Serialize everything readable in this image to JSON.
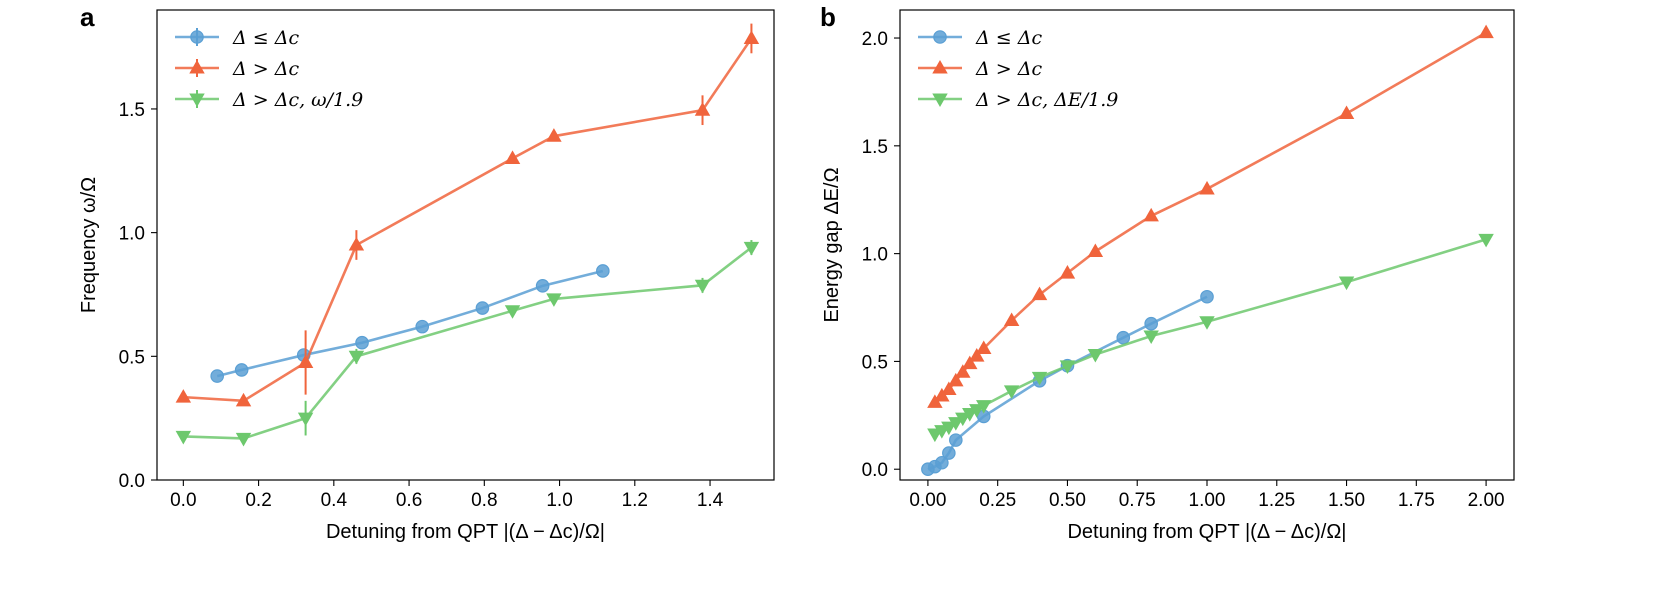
{
  "colors": {
    "blue": "#5a9fd4",
    "red": "#f0643c",
    "green": "#6dc86d"
  },
  "chart_data": [
    {
      "type": "line",
      "panel_label": "a",
      "xlabel": "Detuning from QPT |(Δ − Δc)/Ω|",
      "ylabel": "Frequency ω/Ω",
      "xlim": [
        -0.07,
        1.57
      ],
      "ylim": [
        0.0,
        1.9
      ],
      "xticks": [
        0.0,
        0.2,
        0.4,
        0.6,
        0.8,
        1.0,
        1.2,
        1.4
      ],
      "xtick_labels": [
        "0.0",
        "0.2",
        "0.4",
        "0.6",
        "0.8",
        "1.0",
        "1.2",
        "1.4"
      ],
      "yticks": [
        0.0,
        0.5,
        1.0,
        1.5
      ],
      "ytick_labels": [
        "0.0",
        "0.5",
        "1.0",
        "1.5"
      ],
      "legend_position": "top-left",
      "series": [
        {
          "name": "Δ ≤ Δc",
          "color": "#5a9fd4",
          "marker": "circle",
          "x": [
            0.09,
            0.155,
            0.32,
            0.475,
            0.635,
            0.795,
            0.955,
            1.115
          ],
          "y": [
            0.42,
            0.445,
            0.505,
            0.555,
            0.62,
            0.695,
            0.785,
            0.845
          ],
          "err": [
            0,
            0,
            0,
            0,
            0,
            0,
            0,
            0
          ]
        },
        {
          "name": "Δ > Δc",
          "color": "#f0643c",
          "marker": "triangle-up",
          "x": [
            0.0,
            0.16,
            0.325,
            0.46,
            0.875,
            0.985,
            1.38,
            1.51
          ],
          "y": [
            0.335,
            0.32,
            0.475,
            0.95,
            1.3,
            1.39,
            1.495,
            1.785
          ],
          "err": [
            0,
            0,
            0.13,
            0.06,
            0,
            0,
            0.06,
            0.06
          ]
        },
        {
          "name": "Δ > Δc, ω/1.9",
          "color": "#6dc86d",
          "marker": "triangle-down",
          "x": [
            0.0,
            0.16,
            0.325,
            0.46,
            0.875,
            0.985,
            1.38,
            1.51
          ],
          "y": [
            0.176,
            0.168,
            0.25,
            0.5,
            0.684,
            0.732,
            0.787,
            0.94
          ],
          "err": [
            0,
            0,
            0.07,
            0.03,
            0,
            0,
            0.03,
            0.03
          ]
        }
      ]
    },
    {
      "type": "line",
      "panel_label": "b",
      "xlabel": "Detuning from QPT |(Δ − Δc)/Ω|",
      "ylabel": "Energy gap ΔE/Ω",
      "xlim": [
        -0.1,
        2.1
      ],
      "ylim": [
        -0.05,
        2.13
      ],
      "xticks": [
        0.0,
        0.25,
        0.5,
        0.75,
        1.0,
        1.25,
        1.5,
        1.75,
        2.0
      ],
      "xtick_labels": [
        "0.00",
        "0.25",
        "0.50",
        "0.75",
        "1.00",
        "1.25",
        "1.50",
        "1.75",
        "2.00"
      ],
      "yticks": [
        0.0,
        0.5,
        1.0,
        1.5,
        2.0
      ],
      "ytick_labels": [
        "0.0",
        "0.5",
        "1.0",
        "1.5",
        "2.0"
      ],
      "legend_position": "top-left",
      "series": [
        {
          "name": "Δ ≤ Δc",
          "color": "#5a9fd4",
          "marker": "circle",
          "x": [
            0.0,
            0.025,
            0.05,
            0.075,
            0.1,
            0.2,
            0.4,
            0.5,
            0.7,
            0.8,
            1.0
          ],
          "y": [
            0.0,
            0.012,
            0.03,
            0.075,
            0.135,
            0.245,
            0.41,
            0.48,
            0.61,
            0.675,
            0.8
          ],
          "err": [
            0,
            0,
            0,
            0,
            0,
            0,
            0,
            0,
            0,
            0,
            0
          ]
        },
        {
          "name": "Δ > Δc",
          "color": "#f0643c",
          "marker": "triangle-up",
          "x": [
            0.025,
            0.05,
            0.075,
            0.1,
            0.125,
            0.15,
            0.175,
            0.2,
            0.3,
            0.4,
            0.5,
            0.6,
            0.8,
            1.0,
            1.5,
            2.0
          ],
          "y": [
            0.31,
            0.34,
            0.37,
            0.41,
            0.45,
            0.49,
            0.525,
            0.56,
            0.69,
            0.81,
            0.91,
            1.01,
            1.175,
            1.3,
            1.65,
            2.025
          ],
          "err": [
            0,
            0,
            0,
            0,
            0,
            0,
            0,
            0,
            0,
            0,
            0,
            0,
            0,
            0,
            0,
            0
          ]
        },
        {
          "name": "Δ > Δc, ΔE/1.9",
          "color": "#6dc86d",
          "marker": "triangle-down",
          "x": [
            0.025,
            0.05,
            0.075,
            0.1,
            0.125,
            0.15,
            0.175,
            0.2,
            0.3,
            0.4,
            0.5,
            0.6,
            0.8,
            1.0,
            1.5,
            2.0
          ],
          "y": [
            0.163,
            0.179,
            0.195,
            0.216,
            0.237,
            0.258,
            0.276,
            0.295,
            0.363,
            0.426,
            0.479,
            0.532,
            0.618,
            0.684,
            0.868,
            1.066
          ],
          "err": [
            0,
            0,
            0,
            0,
            0,
            0,
            0,
            0,
            0,
            0,
            0,
            0,
            0,
            0,
            0,
            0
          ]
        }
      ]
    }
  ]
}
